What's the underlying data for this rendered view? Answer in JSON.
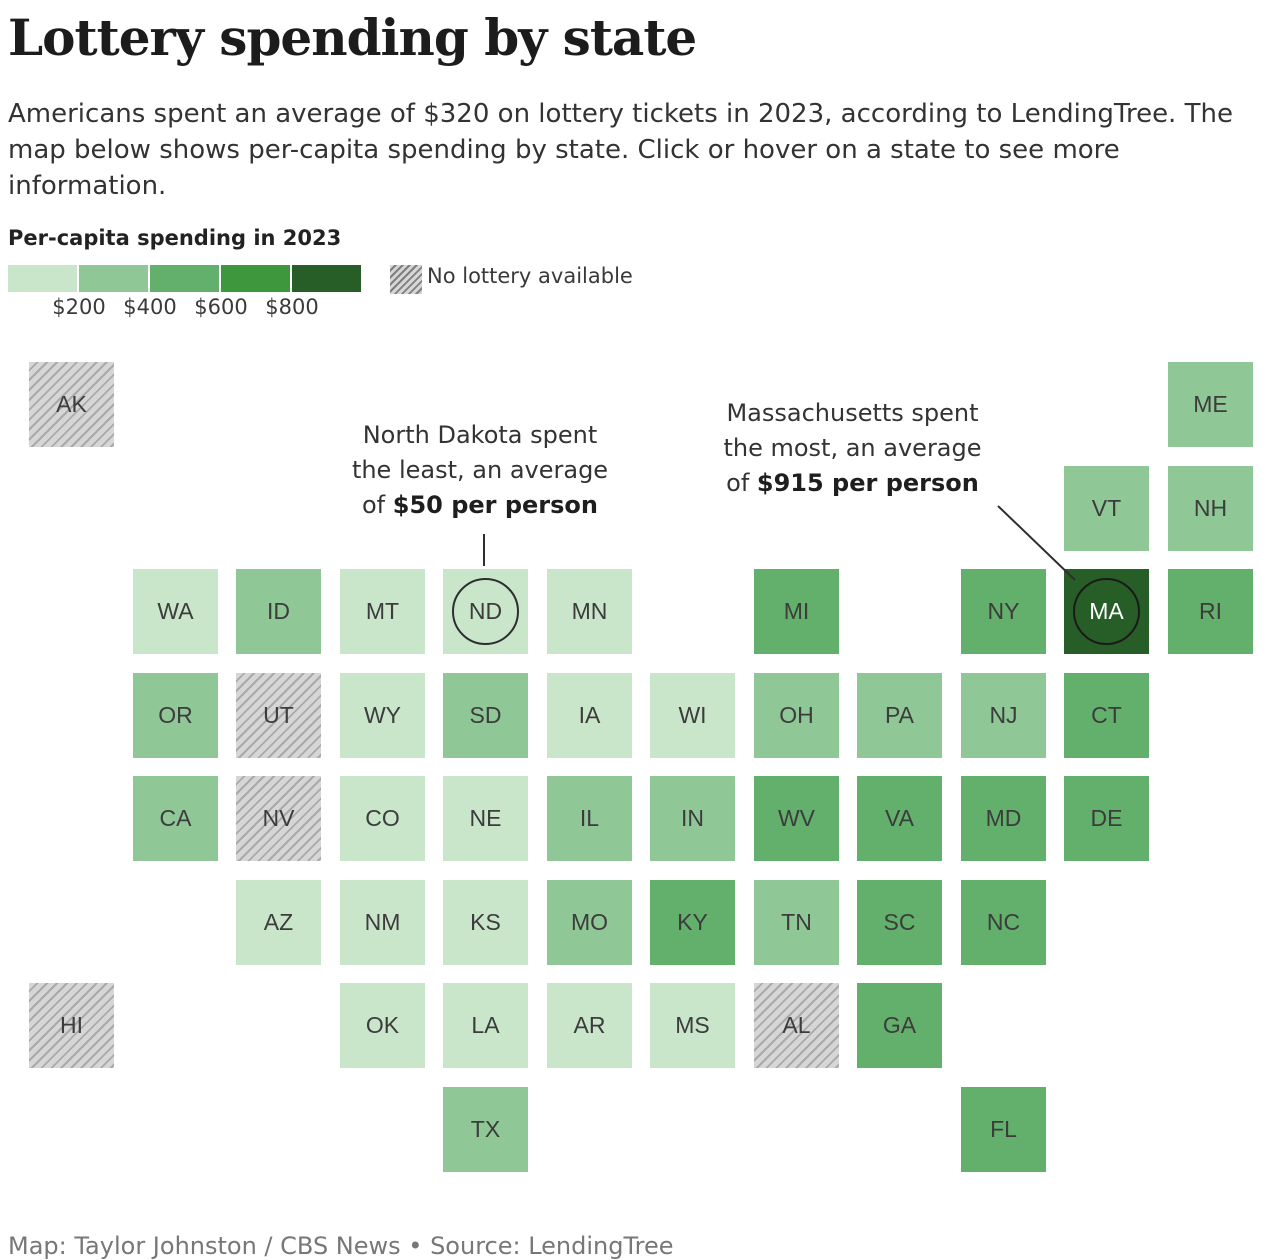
{
  "title": "Lottery spending by state",
  "subtitle": "Americans spent an average of $320 on lottery tickets in 2023, according to LendingTree. The map below shows per-capita spending by state. Click or hover on a state to see more information.",
  "legend": {
    "title": "Per-capita spending in 2023",
    "ticks": [
      "$200",
      "$400",
      "$600",
      "$800"
    ],
    "colors": [
      "#c9e6cb",
      "#8fc796",
      "#62b06c",
      "#3f973d",
      "#275e27"
    ],
    "no_lottery_label": "No lottery available"
  },
  "annotations": {
    "nd": {
      "line1": "North Dakota spent",
      "line2": "the least, an average",
      "line3_prefix": "of ",
      "line3_bold": "$50 per person"
    },
    "ma": {
      "line1": "Massachusetts spent",
      "line2": "the most, an average",
      "line3_prefix": "of ",
      "line3_bold": "$915 per person"
    }
  },
  "states": [
    {
      "abbr": "AK",
      "col": 0,
      "row": 0,
      "bin": -1
    },
    {
      "abbr": "ME",
      "col": 11,
      "row": 0,
      "bin": 1
    },
    {
      "abbr": "VT",
      "col": 10,
      "row": 1,
      "bin": 1
    },
    {
      "abbr": "NH",
      "col": 11,
      "row": 1,
      "bin": 1
    },
    {
      "abbr": "WA",
      "col": 1,
      "row": 2,
      "bin": 0
    },
    {
      "abbr": "ID",
      "col": 2,
      "row": 2,
      "bin": 1
    },
    {
      "abbr": "MT",
      "col": 3,
      "row": 2,
      "bin": 0
    },
    {
      "abbr": "ND",
      "col": 4,
      "row": 2,
      "bin": 0,
      "highlight": true
    },
    {
      "abbr": "MN",
      "col": 5,
      "row": 2,
      "bin": 0
    },
    {
      "abbr": "MI",
      "col": 7,
      "row": 2,
      "bin": 2
    },
    {
      "abbr": "NY",
      "col": 9,
      "row": 2,
      "bin": 2
    },
    {
      "abbr": "MA",
      "col": 10,
      "row": 2,
      "bin": 4,
      "highlight": true
    },
    {
      "abbr": "RI",
      "col": 11,
      "row": 2,
      "bin": 2
    },
    {
      "abbr": "OR",
      "col": 1,
      "row": 3,
      "bin": 1
    },
    {
      "abbr": "UT",
      "col": 2,
      "row": 3,
      "bin": -1
    },
    {
      "abbr": "WY",
      "col": 3,
      "row": 3,
      "bin": 0
    },
    {
      "abbr": "SD",
      "col": 4,
      "row": 3,
      "bin": 1
    },
    {
      "abbr": "IA",
      "col": 5,
      "row": 3,
      "bin": 0
    },
    {
      "abbr": "WI",
      "col": 6,
      "row": 3,
      "bin": 0
    },
    {
      "abbr": "OH",
      "col": 7,
      "row": 3,
      "bin": 1
    },
    {
      "abbr": "PA",
      "col": 8,
      "row": 3,
      "bin": 1
    },
    {
      "abbr": "NJ",
      "col": 9,
      "row": 3,
      "bin": 1
    },
    {
      "abbr": "CT",
      "col": 10,
      "row": 3,
      "bin": 2
    },
    {
      "abbr": "CA",
      "col": 1,
      "row": 4,
      "bin": 1
    },
    {
      "abbr": "NV",
      "col": 2,
      "row": 4,
      "bin": -1
    },
    {
      "abbr": "CO",
      "col": 3,
      "row": 4,
      "bin": 0
    },
    {
      "abbr": "NE",
      "col": 4,
      "row": 4,
      "bin": 0
    },
    {
      "abbr": "IL",
      "col": 5,
      "row": 4,
      "bin": 1
    },
    {
      "abbr": "IN",
      "col": 6,
      "row": 4,
      "bin": 1
    },
    {
      "abbr": "WV",
      "col": 7,
      "row": 4,
      "bin": 2
    },
    {
      "abbr": "VA",
      "col": 8,
      "row": 4,
      "bin": 2
    },
    {
      "abbr": "MD",
      "col": 9,
      "row": 4,
      "bin": 2
    },
    {
      "abbr": "DE",
      "col": 10,
      "row": 4,
      "bin": 2
    },
    {
      "abbr": "AZ",
      "col": 2,
      "row": 5,
      "bin": 0
    },
    {
      "abbr": "NM",
      "col": 3,
      "row": 5,
      "bin": 0
    },
    {
      "abbr": "KS",
      "col": 4,
      "row": 5,
      "bin": 0
    },
    {
      "abbr": "MO",
      "col": 5,
      "row": 5,
      "bin": 1
    },
    {
      "abbr": "KY",
      "col": 6,
      "row": 5,
      "bin": 2
    },
    {
      "abbr": "TN",
      "col": 7,
      "row": 5,
      "bin": 1
    },
    {
      "abbr": "SC",
      "col": 8,
      "row": 5,
      "bin": 2
    },
    {
      "abbr": "NC",
      "col": 9,
      "row": 5,
      "bin": 2
    },
    {
      "abbr": "HI",
      "col": 0,
      "row": 6,
      "bin": -1
    },
    {
      "abbr": "OK",
      "col": 3,
      "row": 6,
      "bin": 0
    },
    {
      "abbr": "LA",
      "col": 4,
      "row": 6,
      "bin": 0
    },
    {
      "abbr": "AR",
      "col": 5,
      "row": 6,
      "bin": 0
    },
    {
      "abbr": "MS",
      "col": 6,
      "row": 6,
      "bin": 0
    },
    {
      "abbr": "AL",
      "col": 7,
      "row": 6,
      "bin": -1
    },
    {
      "abbr": "GA",
      "col": 8,
      "row": 6,
      "bin": 2
    },
    {
      "abbr": "TX",
      "col": 4,
      "row": 7,
      "bin": 1
    },
    {
      "abbr": "FL",
      "col": 9,
      "row": 7,
      "bin": 2
    }
  ],
  "credit": "Map: Taylor Johnston / CBS News • Source: LendingTree"
}
